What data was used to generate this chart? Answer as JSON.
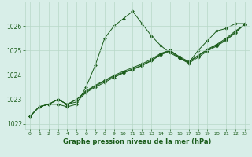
{
  "background_color": "#d8eee8",
  "grid_color": "#b8d8c8",
  "line_color": "#1a5c1a",
  "marker": "D",
  "marker_size": 2,
  "title": "Graphe pression niveau de la mer (hPa)",
  "xlim": [
    -0.5,
    23.5
  ],
  "ylim": [
    1021.8,
    1027.0
  ],
  "yticks": [
    1022,
    1023,
    1024,
    1025,
    1026
  ],
  "xticks": [
    0,
    1,
    2,
    3,
    4,
    5,
    6,
    7,
    8,
    9,
    10,
    11,
    12,
    13,
    14,
    15,
    16,
    17,
    18,
    19,
    20,
    21,
    22,
    23
  ],
  "series": [
    [
      1022.3,
      1022.7,
      1022.8,
      1022.8,
      1022.7,
      1022.8,
      1023.5,
      1024.4,
      1025.5,
      1026.0,
      1026.3,
      1026.6,
      1026.1,
      1025.6,
      1025.2,
      1024.9,
      1024.7,
      1024.5,
      1025.0,
      1025.4,
      1025.8,
      1025.9,
      1026.1,
      1026.1
    ],
    [
      1022.3,
      1022.7,
      1022.8,
      1023.0,
      1022.8,
      1023.0,
      1023.3,
      1023.55,
      1023.75,
      1023.95,
      1024.1,
      1024.25,
      1024.4,
      1024.6,
      1024.85,
      1025.0,
      1024.75,
      1024.55,
      1024.8,
      1025.05,
      1025.25,
      1025.5,
      1025.8,
      1026.05
    ],
    [
      1022.3,
      1022.7,
      1022.8,
      1023.0,
      1022.8,
      1023.0,
      1023.35,
      1023.58,
      1023.78,
      1023.98,
      1024.15,
      1024.3,
      1024.45,
      1024.65,
      1024.88,
      1025.02,
      1024.72,
      1024.52,
      1024.78,
      1025.02,
      1025.22,
      1025.45,
      1025.75,
      1026.08
    ],
    [
      1022.3,
      1022.7,
      1022.8,
      1023.0,
      1022.8,
      1022.9,
      1023.28,
      1023.5,
      1023.7,
      1023.9,
      1024.08,
      1024.22,
      1024.38,
      1024.58,
      1024.82,
      1024.98,
      1024.68,
      1024.48,
      1024.72,
      1024.98,
      1025.18,
      1025.42,
      1025.72,
      1026.08
    ]
  ]
}
